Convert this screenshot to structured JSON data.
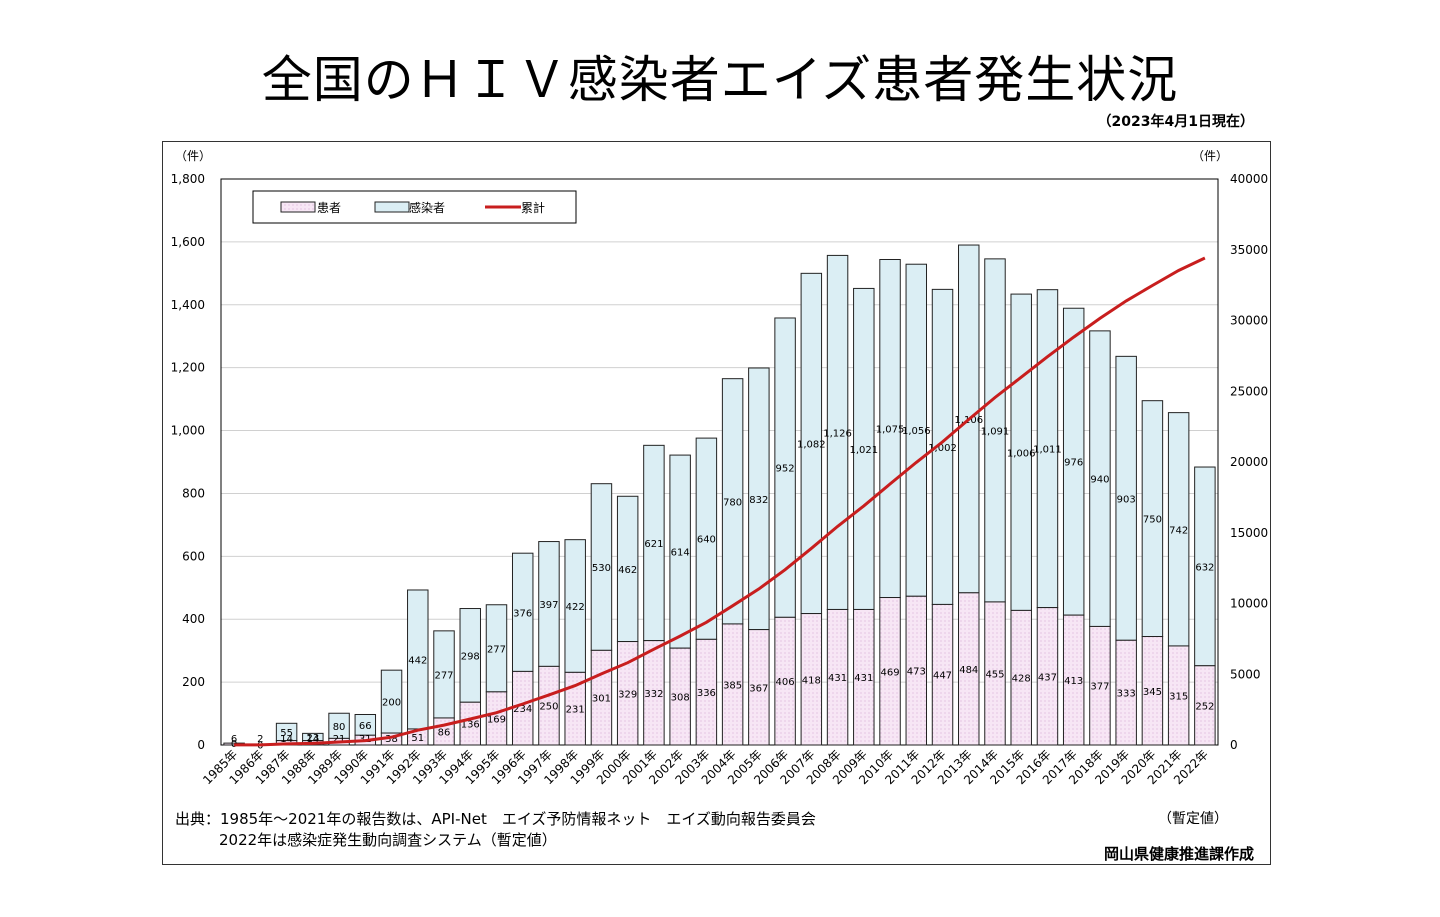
{
  "title": "全国のＨＩＶ感染者エイズ患者発生状況",
  "as_of": "（2023年4月1日現在）",
  "source_line1": "出典：1985年～2021年の報告数は、API-Net　エイズ予防情報ネット　エイズ動向報告委員会",
  "source_line2": "2022年は感染症発生動向調査システム（暫定値）",
  "provisional_note": "（暫定値）",
  "author": "岡山県健康推進課作成",
  "chart_data": {
    "type": "bar",
    "stacked": true,
    "categories": [
      "1985年",
      "1986年",
      "1987年",
      "1988年",
      "1989年",
      "1990年",
      "1991年",
      "1992年",
      "1993年",
      "1994年",
      "1995年",
      "1996年",
      "1997年",
      "1998年",
      "1999年",
      "2000年",
      "2001年",
      "2002年",
      "2003年",
      "2004年",
      "2005年",
      "2006年",
      "2007年",
      "2008年",
      "2009年",
      "2010年",
      "2011年",
      "2012年",
      "2013年",
      "2014年",
      "2015年",
      "2016年",
      "2017年",
      "2018年",
      "2019年",
      "2020年",
      "2021年",
      "2022年"
    ],
    "series": [
      {
        "name": "患者",
        "type": "bar",
        "color": "#f7e6f5",
        "values": [
          6,
          2,
          14,
          14,
          21,
          31,
          38,
          51,
          86,
          136,
          169,
          234,
          250,
          231,
          301,
          329,
          332,
          308,
          336,
          385,
          367,
          406,
          418,
          431,
          431,
          469,
          473,
          447,
          484,
          455,
          428,
          437,
          413,
          377,
          333,
          345,
          315,
          252
        ],
        "labels": [
          "6",
          "2",
          "14",
          "14",
          "21",
          "31",
          "38",
          "51",
          "86",
          "136",
          "169",
          "234",
          "250",
          "231",
          "301",
          "329",
          "332",
          "308",
          "336",
          "385",
          "367",
          "406",
          "418",
          "431",
          "431",
          "469",
          "473",
          "447",
          "484",
          "455",
          "428",
          "437",
          "413",
          "377",
          "333",
          "345",
          "315",
          "252"
        ]
      },
      {
        "name": "感染者",
        "type": "bar",
        "color": "#dbeef4",
        "values": [
          0,
          0,
          55,
          23,
          80,
          66,
          200,
          442,
          277,
          298,
          277,
          376,
          397,
          422,
          530,
          462,
          621,
          614,
          640,
          780,
          832,
          952,
          1082,
          1126,
          1021,
          1075,
          1056,
          1002,
          1106,
          1091,
          1006,
          1011,
          976,
          940,
          903,
          750,
          742,
          632
        ],
        "labels": [
          "0",
          "0",
          "55",
          "23",
          "80",
          "66",
          "200",
          "442",
          "277",
          "298",
          "277",
          "376",
          "397",
          "422",
          "530",
          "462",
          "621",
          "614",
          "640",
          "780",
          "832",
          "952",
          "1,082",
          "1,126",
          "1,021",
          "1,075",
          "1,056",
          "1,002",
          "1,106",
          "1,091",
          "1,006",
          "1,011",
          "976",
          "940",
          "903",
          "750",
          "742",
          "632"
        ]
      },
      {
        "name": "累計",
        "type": "line",
        "axis": "right",
        "color": "#c81e1e",
        "values": [
          6,
          8,
          77,
          114,
          215,
          312,
          550,
          1043,
          1406,
          1840,
          2286,
          2896,
          3543,
          4196,
          5027,
          5818,
          6771,
          7693,
          8669,
          9834,
          11033,
          12391,
          13891,
          15448,
          16900,
          18444,
          19973,
          21422,
          23012,
          24558,
          25992,
          27440,
          28829,
          30146,
          31382,
          32477,
          33534,
          34418
        ]
      }
    ],
    "y_left": {
      "unit": "（件）",
      "min": 0,
      "max": 1800,
      "ticks": [
        "0",
        "200",
        "400",
        "600",
        "800",
        "1,000",
        "1,200",
        "1,400",
        "1,600",
        "1,800"
      ]
    },
    "y_right": {
      "unit": "（件）",
      "min": 0,
      "max": 40000,
      "ticks": [
        "0",
        "5000",
        "10000",
        "15000",
        "20000",
        "25000",
        "30000",
        "35000",
        "40000"
      ]
    },
    "grid": true,
    "legend_position": "top-left"
  }
}
